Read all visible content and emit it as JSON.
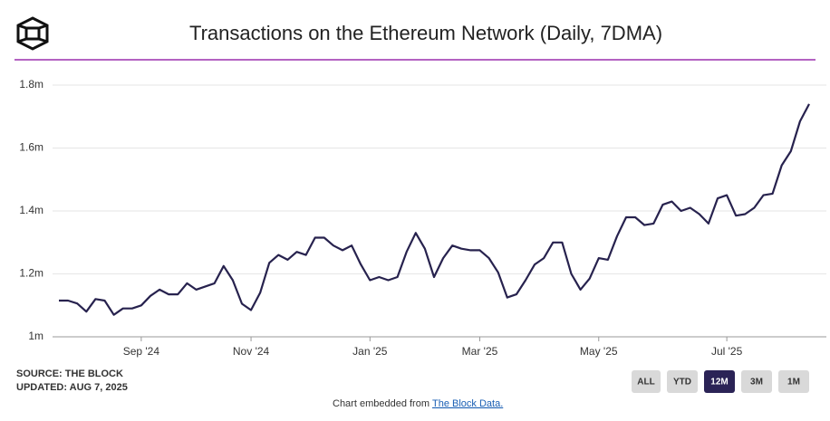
{
  "chart_data": {
    "type": "line",
    "title": "Transactions on the Ethereum Network (Daily, 7DMA)",
    "categories": [
      null,
      null,
      null,
      null,
      null,
      null,
      null,
      null,
      null,
      "Sep '24",
      null,
      null,
      null,
      null,
      null,
      null,
      null,
      null,
      null,
      null,
      null,
      "Nov '24",
      null,
      null,
      null,
      null,
      null,
      null,
      null,
      null,
      null,
      null,
      null,
      null,
      "Jan '25",
      null,
      null,
      null,
      null,
      null,
      null,
      null,
      null,
      null,
      null,
      null,
      "Mar '25",
      null,
      null,
      null,
      null,
      null,
      null,
      null,
      null,
      null,
      null,
      null,
      null,
      "May '25",
      null,
      null,
      null,
      null,
      null,
      null,
      null,
      null,
      null,
      null,
      null,
      null,
      null,
      "Jul '25",
      null,
      null,
      null,
      null,
      null,
      null,
      null,
      null,
      null
    ],
    "series": [
      {
        "name": "Transactions",
        "color": "#27224e",
        "values": [
          1.115,
          1.115,
          1.106,
          1.08,
          1.12,
          1.115,
          1.07,
          1.09,
          1.09,
          1.1,
          1.13,
          1.15,
          1.135,
          1.135,
          1.17,
          1.15,
          1.16,
          1.17,
          1.225,
          1.18,
          1.105,
          1.085,
          1.14,
          1.235,
          1.26,
          1.245,
          1.27,
          1.26,
          1.315,
          1.315,
          1.29,
          1.275,
          1.29,
          1.23,
          1.18,
          1.19,
          1.18,
          1.19,
          1.27,
          1.33,
          1.28,
          1.19,
          1.25,
          1.29,
          1.28,
          1.275,
          1.275,
          1.25,
          1.205,
          1.125,
          1.135,
          1.18,
          1.23,
          1.25,
          1.3,
          1.3,
          1.2,
          1.15,
          1.185,
          1.25,
          1.245,
          1.32,
          1.38,
          1.38,
          1.355,
          1.36,
          1.42,
          1.43,
          1.4,
          1.41,
          1.39,
          1.36,
          1.44,
          1.45,
          1.385,
          1.39,
          1.41,
          1.45,
          1.455,
          1.545,
          1.59,
          1.685,
          1.74
        ]
      }
    ],
    "ylim": [
      1,
      1.8
    ],
    "yticks": [
      {
        "value": 1,
        "label": "1m"
      },
      {
        "value": 1.2,
        "label": "1.2m"
      },
      {
        "value": 1.4,
        "label": "1.4m"
      },
      {
        "value": 1.6,
        "label": "1.6m"
      },
      {
        "value": 1.8,
        "label": "1.8m"
      }
    ],
    "grid": true
  },
  "footer": {
    "source": "SOURCE: THE BLOCK",
    "updated": "UPDATED: AUG 7, 2025",
    "embed_text": "Chart embedded from",
    "embed_link": "The Block Data."
  },
  "range_buttons": [
    "ALL",
    "YTD",
    "12M",
    "3M",
    "1M"
  ],
  "active_range": "12M"
}
